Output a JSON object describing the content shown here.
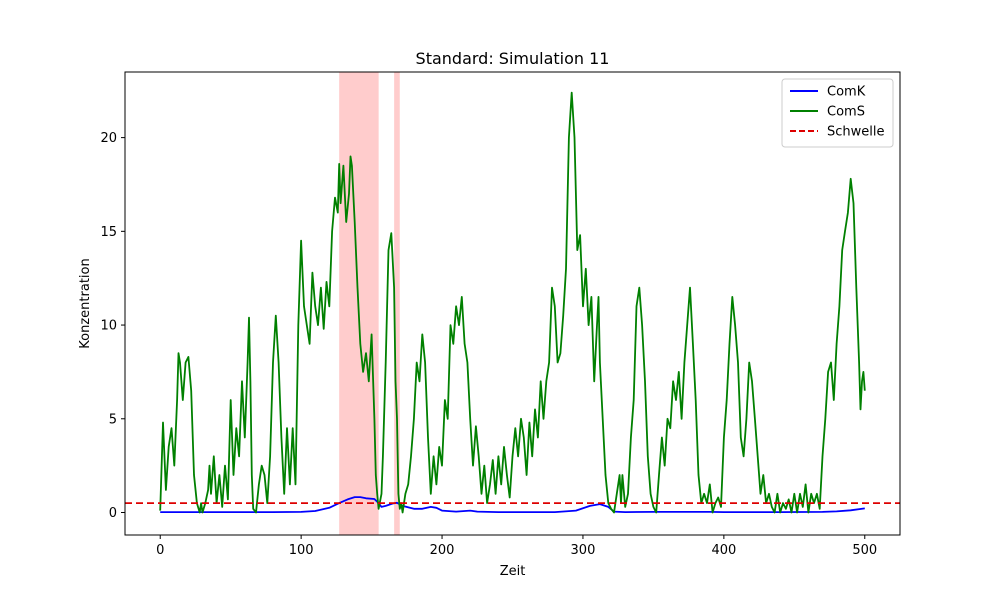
{
  "chart_data": {
    "type": "line",
    "title": "Standard: Simulation 11",
    "xlabel": "Zeit",
    "ylabel": "Konzentration",
    "xlim": [
      -25,
      525
    ],
    "ylim": [
      -1.2,
      23.5
    ],
    "xticks": [
      0,
      100,
      200,
      300,
      400,
      500
    ],
    "yticks": [
      0,
      5,
      10,
      15,
      20
    ],
    "grid": false,
    "legend_position": "top-right",
    "threshold": {
      "name": "Schwelle",
      "value": 0.5,
      "color": "#dd0000",
      "style": "dashed"
    },
    "shaded_regions": [
      {
        "x0": 127,
        "x1": 155,
        "color": "#ff9999"
      },
      {
        "x0": 166,
        "x1": 170,
        "color": "#ff9999"
      }
    ],
    "series": [
      {
        "name": "ComK",
        "color": "#0000ff",
        "points": [
          [
            0,
            0.02
          ],
          [
            40,
            0.02
          ],
          [
            80,
            0.02
          ],
          [
            100,
            0.03
          ],
          [
            110,
            0.08
          ],
          [
            120,
            0.25
          ],
          [
            127,
            0.5
          ],
          [
            133,
            0.7
          ],
          [
            138,
            0.82
          ],
          [
            142,
            0.82
          ],
          [
            146,
            0.76
          ],
          [
            152,
            0.72
          ],
          [
            155,
            0.5
          ],
          [
            157,
            0.3
          ],
          [
            160,
            0.35
          ],
          [
            165,
            0.48
          ],
          [
            168,
            0.52
          ],
          [
            172,
            0.35
          ],
          [
            180,
            0.2
          ],
          [
            186,
            0.2
          ],
          [
            192,
            0.3
          ],
          [
            196,
            0.25
          ],
          [
            200,
            0.1
          ],
          [
            210,
            0.05
          ],
          [
            220,
            0.1
          ],
          [
            225,
            0.05
          ],
          [
            240,
            0.02
          ],
          [
            280,
            0.02
          ],
          [
            295,
            0.1
          ],
          [
            305,
            0.35
          ],
          [
            312,
            0.45
          ],
          [
            318,
            0.3
          ],
          [
            322,
            0.05
          ],
          [
            330,
            0.02
          ],
          [
            350,
            0.03
          ],
          [
            390,
            0.03
          ],
          [
            400,
            0.02
          ],
          [
            440,
            0.02
          ],
          [
            470,
            0.03
          ],
          [
            480,
            0.06
          ],
          [
            490,
            0.12
          ],
          [
            500,
            0.22
          ]
        ]
      },
      {
        "name": "ComS",
        "color": "#008000",
        "points": [
          [
            0,
            0.1
          ],
          [
            2,
            4.8
          ],
          [
            4,
            1.2
          ],
          [
            6,
            3.5
          ],
          [
            8,
            4.5
          ],
          [
            10,
            2.5
          ],
          [
            12,
            6
          ],
          [
            13,
            8.5
          ],
          [
            14,
            8
          ],
          [
            16,
            6
          ],
          [
            18,
            8
          ],
          [
            20,
            8.3
          ],
          [
            22,
            6.5
          ],
          [
            24,
            2
          ],
          [
            26,
            0.5
          ],
          [
            28,
            0
          ],
          [
            29,
            0.5
          ],
          [
            30,
            0
          ],
          [
            32,
            0.5
          ],
          [
            34,
            1.2
          ],
          [
            35,
            2.5
          ],
          [
            36,
            1
          ],
          [
            38,
            3
          ],
          [
            40,
            0.5
          ],
          [
            42,
            2
          ],
          [
            44,
            0.3
          ],
          [
            46,
            2.5
          ],
          [
            48,
            0.7
          ],
          [
            50,
            6
          ],
          [
            52,
            2
          ],
          [
            54,
            4.5
          ],
          [
            56,
            3
          ],
          [
            58,
            7
          ],
          [
            60,
            4
          ],
          [
            62,
            8
          ],
          [
            63,
            10.4
          ],
          [
            64,
            7
          ],
          [
            65,
            2
          ],
          [
            66,
            0.2
          ],
          [
            68,
            0
          ],
          [
            70,
            1.5
          ],
          [
            72,
            2.5
          ],
          [
            74,
            2
          ],
          [
            76,
            0.5
          ],
          [
            78,
            3
          ],
          [
            80,
            8
          ],
          [
            82,
            10.5
          ],
          [
            84,
            8
          ],
          [
            86,
            4
          ],
          [
            88,
            1
          ],
          [
            90,
            4.5
          ],
          [
            92,
            1.5
          ],
          [
            94,
            4.5
          ],
          [
            96,
            1.5
          ],
          [
            98,
            10
          ],
          [
            100,
            14.5
          ],
          [
            102,
            11
          ],
          [
            104,
            10
          ],
          [
            106,
            9
          ],
          [
            108,
            12.8
          ],
          [
            110,
            11
          ],
          [
            112,
            10
          ],
          [
            114,
            12
          ],
          [
            116,
            9.8
          ],
          [
            118,
            12.3
          ],
          [
            120,
            11
          ],
          [
            122,
            15
          ],
          [
            124,
            16.8
          ],
          [
            126,
            16
          ],
          [
            127,
            18.6
          ],
          [
            128,
            16.5
          ],
          [
            130,
            18.5
          ],
          [
            132,
            15.5
          ],
          [
            134,
            17
          ],
          [
            135,
            19
          ],
          [
            136,
            18.5
          ],
          [
            138,
            15.5
          ],
          [
            140,
            12
          ],
          [
            142,
            9
          ],
          [
            144,
            7.5
          ],
          [
            146,
            8.5
          ],
          [
            148,
            7
          ],
          [
            150,
            9.5
          ],
          [
            152,
            5
          ],
          [
            153,
            2
          ],
          [
            154,
            1
          ],
          [
            155,
            0.2
          ],
          [
            157,
            1
          ],
          [
            158,
            3
          ],
          [
            160,
            8
          ],
          [
            162,
            14
          ],
          [
            164,
            14.9
          ],
          [
            166,
            12
          ],
          [
            167,
            7
          ],
          [
            168,
            5
          ],
          [
            169,
            1
          ],
          [
            170,
            0.2
          ],
          [
            171,
            0.5
          ],
          [
            172,
            0
          ],
          [
            174,
            1
          ],
          [
            176,
            1.5
          ],
          [
            178,
            3
          ],
          [
            180,
            5
          ],
          [
            182,
            8
          ],
          [
            184,
            7
          ],
          [
            186,
            9.5
          ],
          [
            188,
            8
          ],
          [
            190,
            4
          ],
          [
            192,
            1
          ],
          [
            194,
            3
          ],
          [
            196,
            1.5
          ],
          [
            198,
            3.5
          ],
          [
            200,
            2.5
          ],
          [
            202,
            6
          ],
          [
            204,
            5
          ],
          [
            206,
            10
          ],
          [
            208,
            9
          ],
          [
            210,
            11
          ],
          [
            212,
            10
          ],
          [
            214,
            11.5
          ],
          [
            216,
            9
          ],
          [
            218,
            8
          ],
          [
            220,
            5
          ],
          [
            222,
            2.5
          ],
          [
            224,
            4.6
          ],
          [
            226,
            3
          ],
          [
            228,
            1
          ],
          [
            230,
            2.5
          ],
          [
            232,
            0.5
          ],
          [
            234,
            1.5
          ],
          [
            236,
            2.8
          ],
          [
            238,
            1
          ],
          [
            240,
            3
          ],
          [
            242,
            1.5
          ],
          [
            244,
            3.5
          ],
          [
            246,
            2
          ],
          [
            248,
            0.8
          ],
          [
            250,
            3
          ],
          [
            252,
            4.5
          ],
          [
            254,
            3
          ],
          [
            256,
            5
          ],
          [
            258,
            4
          ],
          [
            260,
            2
          ],
          [
            262,
            4.8
          ],
          [
            264,
            3
          ],
          [
            266,
            5.5
          ],
          [
            268,
            4
          ],
          [
            270,
            7
          ],
          [
            272,
            5
          ],
          [
            274,
            7
          ],
          [
            276,
            8
          ],
          [
            278,
            12
          ],
          [
            280,
            11
          ],
          [
            282,
            8
          ],
          [
            284,
            8.5
          ],
          [
            286,
            10.5
          ],
          [
            288,
            13
          ],
          [
            290,
            20
          ],
          [
            292,
            22.4
          ],
          [
            294,
            20
          ],
          [
            296,
            14
          ],
          [
            298,
            14.8
          ],
          [
            300,
            11
          ],
          [
            302,
            13
          ],
          [
            304,
            10
          ],
          [
            306,
            11.5
          ],
          [
            308,
            7
          ],
          [
            310,
            10
          ],
          [
            311,
            11.5
          ],
          [
            312,
            8
          ],
          [
            314,
            5
          ],
          [
            316,
            2
          ],
          [
            318,
            0.5
          ],
          [
            320,
            0.2
          ],
          [
            322,
            0
          ],
          [
            324,
            1
          ],
          [
            326,
            2
          ],
          [
            327,
            0.5
          ],
          [
            328,
            2
          ],
          [
            330,
            0.3
          ],
          [
            332,
            1
          ],
          [
            334,
            4
          ],
          [
            336,
            6
          ],
          [
            338,
            11
          ],
          [
            340,
            12
          ],
          [
            342,
            10
          ],
          [
            344,
            7
          ],
          [
            346,
            3
          ],
          [
            348,
            1
          ],
          [
            350,
            0.3
          ],
          [
            352,
            0
          ],
          [
            354,
            2
          ],
          [
            356,
            4
          ],
          [
            358,
            2.5
          ],
          [
            360,
            5
          ],
          [
            362,
            4.5
          ],
          [
            364,
            7
          ],
          [
            366,
            6
          ],
          [
            368,
            7.5
          ],
          [
            370,
            5
          ],
          [
            372,
            8
          ],
          [
            374,
            10
          ],
          [
            376,
            12
          ],
          [
            378,
            9
          ],
          [
            380,
            6
          ],
          [
            382,
            2
          ],
          [
            384,
            0.5
          ],
          [
            386,
            1
          ],
          [
            388,
            0.5
          ],
          [
            390,
            1.5
          ],
          [
            392,
            0
          ],
          [
            394,
            0.5
          ],
          [
            396,
            0.8
          ],
          [
            398,
            0.3
          ],
          [
            400,
            4
          ],
          [
            402,
            6
          ],
          [
            404,
            9
          ],
          [
            406,
            11.5
          ],
          [
            408,
            10
          ],
          [
            410,
            8
          ],
          [
            412,
            4
          ],
          [
            414,
            3
          ],
          [
            416,
            5
          ],
          [
            418,
            8
          ],
          [
            420,
            7
          ],
          [
            422,
            5
          ],
          [
            424,
            3
          ],
          [
            426,
            1
          ],
          [
            428,
            2
          ],
          [
            430,
            0.5
          ],
          [
            432,
            1
          ],
          [
            434,
            0.3
          ],
          [
            436,
            0
          ],
          [
            438,
            1
          ],
          [
            440,
            0
          ],
          [
            442,
            0.5
          ],
          [
            444,
            0.2
          ],
          [
            446,
            0.7
          ],
          [
            448,
            0
          ],
          [
            450,
            1
          ],
          [
            452,
            0
          ],
          [
            454,
            1
          ],
          [
            456,
            0.3
          ],
          [
            458,
            1.5
          ],
          [
            460,
            0
          ],
          [
            462,
            1
          ],
          [
            464,
            0.5
          ],
          [
            466,
            1
          ],
          [
            468,
            0.2
          ],
          [
            470,
            3
          ],
          [
            472,
            5
          ],
          [
            474,
            7.5
          ],
          [
            476,
            8
          ],
          [
            478,
            6
          ],
          [
            480,
            9
          ],
          [
            482,
            11
          ],
          [
            484,
            14
          ],
          [
            486,
            15
          ],
          [
            488,
            16
          ],
          [
            490,
            17.8
          ],
          [
            492,
            16.5
          ],
          [
            494,
            12
          ],
          [
            496,
            8
          ],
          [
            497,
            5.5
          ],
          [
            498,
            7
          ],
          [
            499,
            7.5
          ],
          [
            500,
            6.5
          ]
        ]
      }
    ]
  }
}
